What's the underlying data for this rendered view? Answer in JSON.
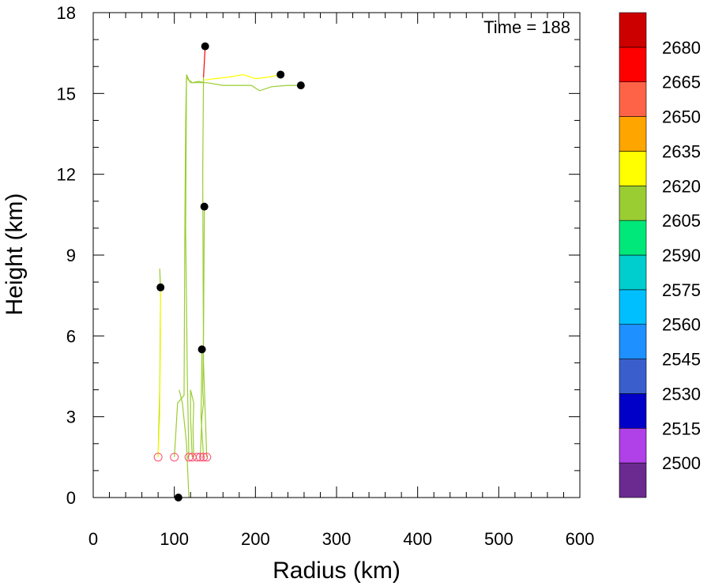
{
  "chart_data": {
    "type": "line",
    "title": "",
    "annotation": "Time = 188",
    "xlabel": "Radius (km)",
    "ylabel": "Height (km)",
    "xlim": [
      0,
      600
    ],
    "ylim": [
      0,
      18
    ],
    "xticks": [
      0,
      100,
      200,
      300,
      400,
      500,
      600
    ],
    "yticks": [
      0,
      3,
      6,
      9,
      12,
      15,
      18
    ],
    "grid": false,
    "legend": "colorbar-right",
    "colorbar": {
      "labels": [
        "2500",
        "2515",
        "2530",
        "2545",
        "2560",
        "2575",
        "2590",
        "2605",
        "2620",
        "2635",
        "2650",
        "2665",
        "2680"
      ],
      "colors": [
        "#6a2a90",
        "#b040e8",
        "#0000c8",
        "#3a5fcd",
        "#1e90ff",
        "#00bfff",
        "#00cdcd",
        "#00e87a",
        "#9acd32",
        "#ffff00",
        "#ffa500",
        "#ff6347",
        "#ff0000",
        "#cd0000"
      ]
    },
    "series": [
      {
        "color": "#9acd32",
        "points": [
          [
            80,
            1.5
          ],
          [
            82,
            4
          ],
          [
            83,
            7.5
          ],
          [
            82,
            8.5
          ],
          [
            83,
            7.8
          ]
        ]
      },
      {
        "color": "#ffff00",
        "points": [
          [
            80,
            1.5
          ],
          [
            82,
            3
          ],
          [
            83,
            6
          ],
          [
            83,
            7.8
          ]
        ]
      },
      {
        "color": "#9acd32",
        "points": [
          [
            100,
            1.5
          ],
          [
            104,
            3.5
          ],
          [
            112,
            3.8
          ],
          [
            113,
            10
          ],
          [
            114,
            14
          ],
          [
            115,
            15.6
          ],
          [
            120,
            15.4
          ],
          [
            140,
            15.4
          ],
          [
            160,
            15.3
          ],
          [
            180,
            15.3
          ],
          [
            195,
            15.3
          ],
          [
            205,
            15.1
          ],
          [
            220,
            15.25
          ],
          [
            240,
            15.3
          ],
          [
            256,
            15.3
          ]
        ]
      },
      {
        "color": "#9acd32",
        "points": [
          [
            118,
            1.5
          ],
          [
            116,
            4.5
          ],
          [
            114,
            10
          ],
          [
            115,
            15.7
          ],
          [
            118,
            15.5
          ],
          [
            122,
            15.4
          ],
          [
            130,
            15.45
          ],
          [
            137,
            15.4
          ]
        ]
      },
      {
        "color": "#ffff00",
        "points": [
          [
            137,
            15.5
          ],
          [
            150,
            15.55
          ],
          [
            165,
            15.6
          ],
          [
            185,
            15.7
          ],
          [
            200,
            15.55
          ],
          [
            215,
            15.6
          ],
          [
            231,
            15.7
          ]
        ]
      },
      {
        "color": "#9acd32",
        "points": [
          [
            122,
            1.5
          ],
          [
            120,
            3
          ],
          [
            120,
            4
          ],
          [
            124,
            3.5
          ],
          [
            123,
            2.5
          ],
          [
            124,
            1.5
          ]
        ]
      },
      {
        "color": "#9acd32",
        "points": [
          [
            132,
            1.5
          ],
          [
            134,
            3
          ],
          [
            136,
            3.5
          ],
          [
            135,
            4
          ],
          [
            136,
            6
          ],
          [
            137,
            10.8
          ]
        ]
      },
      {
        "color": "#9acd32",
        "points": [
          [
            136,
            1.5
          ],
          [
            133,
            3
          ],
          [
            134,
            5.5
          ]
        ]
      },
      {
        "color": "#9acd32",
        "points": [
          [
            140,
            1.5
          ],
          [
            136,
            5
          ],
          [
            135,
            12
          ],
          [
            136,
            15.6
          ]
        ]
      },
      {
        "color": "#ff0000",
        "points": [
          [
            136,
            15.6
          ],
          [
            137,
            16.2
          ],
          [
            138,
            16.75
          ]
        ]
      },
      {
        "color": "#9acd32",
        "points": [
          [
            118,
            0
          ],
          [
            115,
            2
          ],
          [
            110,
            3.5
          ],
          [
            106,
            4
          ]
        ]
      }
    ],
    "start_points": [
      [
        80,
        1.5
      ],
      [
        100,
        1.5
      ],
      [
        118,
        1.5
      ],
      [
        122,
        1.5
      ],
      [
        128,
        1.5
      ],
      [
        132,
        1.5
      ],
      [
        136,
        1.5
      ],
      [
        140,
        1.5
      ]
    ],
    "end_points": [
      [
        83,
        7.8
      ],
      [
        105,
        0
      ],
      [
        134,
        5.5
      ],
      [
        137,
        10.8
      ],
      [
        138,
        16.75
      ],
      [
        231,
        15.7
      ],
      [
        256,
        15.3
      ]
    ]
  }
}
